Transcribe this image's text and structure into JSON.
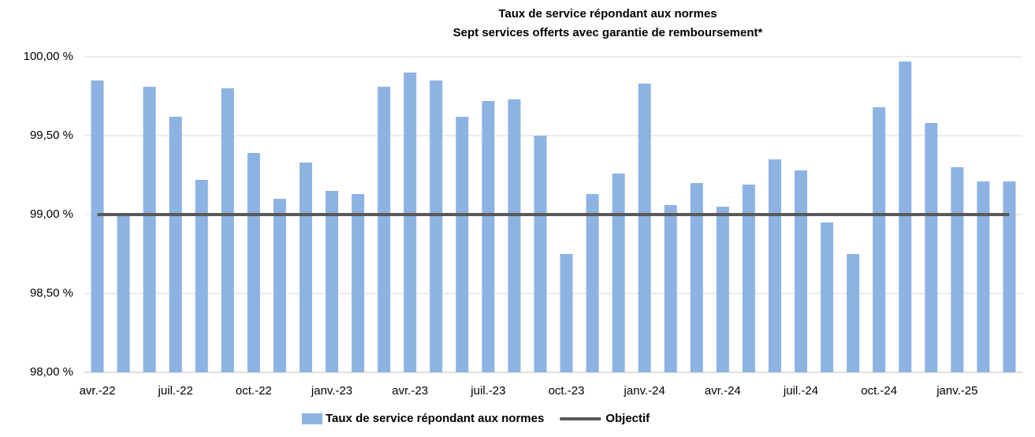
{
  "chart_data": {
    "type": "bar",
    "title": "Taux de service répondant aux normes",
    "subtitle": "Sept services offerts avec garantie de remboursement*",
    "categories": [
      "avr.-22",
      null,
      null,
      "juil.-22",
      null,
      null,
      "oct.-22",
      null,
      null,
      "janv.-23",
      null,
      null,
      "avr.-23",
      null,
      null,
      "juil.-23",
      null,
      null,
      "oct.-23",
      null,
      null,
      "janv.-24",
      null,
      null,
      "avr.-24",
      null,
      null,
      "juil.-24",
      null,
      null,
      "oct.-24",
      null,
      null,
      "janv.-25",
      null,
      null
    ],
    "series": [
      {
        "name": "Taux de service répondant aux normes",
        "color": "#8db3e2",
        "type": "bar",
        "values": [
          99.85,
          99.0,
          99.81,
          99.62,
          99.22,
          99.8,
          99.39,
          99.1,
          99.33,
          99.15,
          99.13,
          99.81,
          99.9,
          99.85,
          99.62,
          99.72,
          99.73,
          99.5,
          98.75,
          99.13,
          99.26,
          99.83,
          99.06,
          99.2,
          99.05,
          99.19,
          99.35,
          99.28,
          98.95,
          98.75,
          99.68,
          99.97,
          99.58,
          99.3,
          99.21,
          99.21
        ]
      },
      {
        "name": "Objectif",
        "color": "#595959",
        "type": "line",
        "values": [
          99,
          99,
          99,
          99,
          99,
          99,
          99,
          99,
          99,
          99,
          99,
          99,
          99,
          99,
          99,
          99,
          99,
          99,
          99,
          99,
          99,
          99,
          99,
          99,
          99,
          99,
          99,
          99,
          99,
          99,
          99,
          99,
          99,
          99,
          99,
          99
        ]
      }
    ],
    "ylim": [
      98,
      100
    ],
    "yticks": [
      {
        "value": 98,
        "label": "98,00 %"
      },
      {
        "value": 98.5,
        "label": "98,50 %"
      },
      {
        "value": 99,
        "label": "99,00 %"
      },
      {
        "value": 99.5,
        "label": "99,50 %"
      },
      {
        "value": 100,
        "label": "100,00 %"
      }
    ],
    "grid": true,
    "legend": "bottom"
  }
}
